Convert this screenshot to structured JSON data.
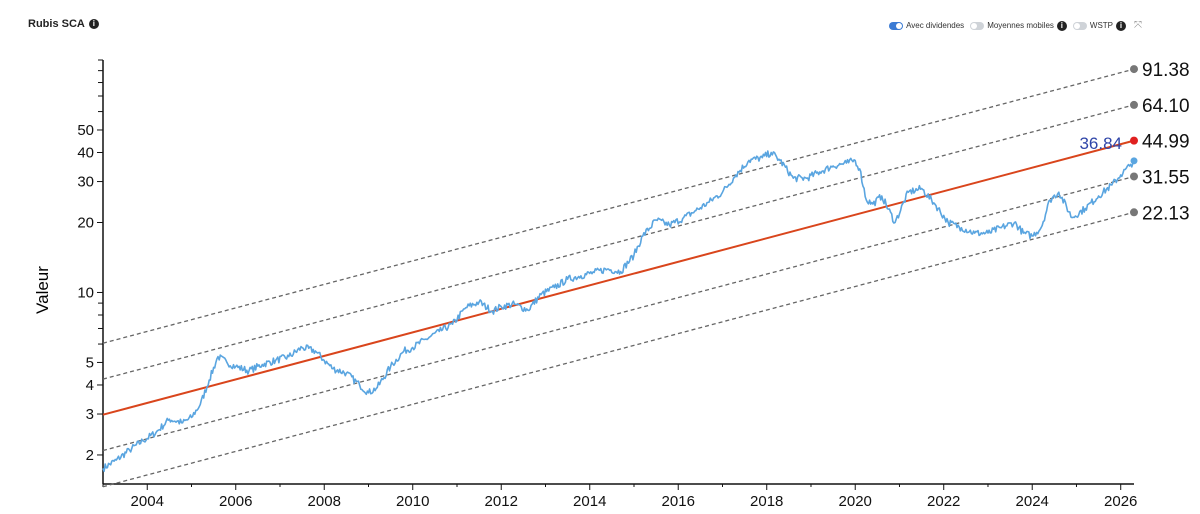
{
  "header": {
    "title": "Rubis SCA",
    "info_glyph": "i",
    "toggles": [
      {
        "label": "Avec dividendes",
        "on": true,
        "info": false
      },
      {
        "label": "Moyennes mobiles",
        "on": false,
        "info": true
      },
      {
        "label": "WSTP",
        "on": false,
        "info": true
      }
    ],
    "expand_glyph": "⤧"
  },
  "colors": {
    "price": "#5aa5e0",
    "trend": "#d9451c",
    "band": "#666666",
    "current_label": "#2f45a8",
    "trend_dot": "#e02020",
    "band_dot": "#777777"
  },
  "chart_data": {
    "type": "line",
    "title": "",
    "xlabel": "",
    "ylabel": "Valeur",
    "y_scale": "log",
    "ylim": [
      1.5,
      100
    ],
    "xlim": [
      2003.0,
      2026.3
    ],
    "x_ticks": [
      "2004",
      "2006",
      "2008",
      "2010",
      "2012",
      "2014",
      "2016",
      "2018",
      "2020",
      "2022",
      "2024",
      "2026"
    ],
    "y_ticks": [
      "2",
      "3",
      "4",
      "5",
      "10",
      "20",
      "30",
      "40",
      "50"
    ],
    "grid": false,
    "current_value": "36.84",
    "trend_lines": [
      {
        "role": "upper-2",
        "start": [
          2003.0,
          6.05
        ],
        "end": [
          2026.3,
          91.38
        ],
        "end_label": "91.38",
        "style": "dashed"
      },
      {
        "role": "upper-1",
        "start": [
          2003.0,
          4.24
        ],
        "end": [
          2026.3,
          64.1
        ],
        "end_label": "64.10",
        "style": "dashed"
      },
      {
        "role": "trend",
        "start": [
          2003.0,
          2.98
        ],
        "end": [
          2026.3,
          44.99
        ],
        "end_label": "44.99",
        "style": "solid"
      },
      {
        "role": "lower-1",
        "start": [
          2003.0,
          2.09
        ],
        "end": [
          2026.3,
          31.55
        ],
        "end_label": "31.55",
        "style": "dashed"
      },
      {
        "role": "lower-2",
        "start": [
          2003.0,
          1.46
        ],
        "end": [
          2026.3,
          22.13
        ],
        "end_label": "22.13",
        "style": "dashed"
      }
    ],
    "series": [
      {
        "x": [
          2003.0,
          2003.3,
          2003.6,
          2003.9,
          2004.2,
          2004.5,
          2004.8,
          2005.0,
          2005.2,
          2005.4,
          2005.6,
          2005.8,
          2006.0,
          2006.3,
          2006.6,
          2006.9,
          2007.2,
          2007.5,
          2007.8,
          2008.0,
          2008.2,
          2008.5,
          2008.8,
          2009.0,
          2009.2,
          2009.5,
          2009.8,
          2010.0,
          2010.3,
          2010.6,
          2010.9,
          2011.2,
          2011.5,
          2011.8,
          2012.0,
          2012.3,
          2012.6,
          2012.9,
          2013.2,
          2013.5,
          2013.8,
          2014.1,
          2014.4,
          2014.7,
          2015.0,
          2015.2,
          2015.5,
          2015.8,
          2016.1,
          2016.4,
          2016.7,
          2017.0,
          2017.3,
          2017.6,
          2017.9,
          2018.1,
          2018.3,
          2018.6,
          2018.9,
          2019.2,
          2019.5,
          2019.8,
          2020.0,
          2020.1,
          2020.25,
          2020.4,
          2020.6,
          2020.9,
          2021.2,
          2021.5,
          2021.8,
          2022.1,
          2022.4,
          2022.7,
          2023.0,
          2023.3,
          2023.6,
          2023.8,
          2024.0,
          2024.2,
          2024.4,
          2024.6,
          2024.9,
          2025.2,
          2025.5,
          2025.8,
          2026.0,
          2026.2,
          2026.3
        ],
        "y": [
          1.75,
          1.9,
          2.1,
          2.3,
          2.5,
          2.85,
          2.75,
          2.9,
          3.3,
          4.2,
          5.3,
          5.0,
          4.8,
          4.6,
          4.9,
          5.1,
          5.3,
          5.8,
          5.6,
          5.1,
          4.7,
          4.5,
          4.0,
          3.7,
          3.9,
          4.8,
          5.6,
          5.8,
          6.3,
          6.8,
          7.3,
          8.6,
          9.1,
          8.3,
          8.7,
          8.9,
          8.4,
          9.8,
          10.5,
          11.4,
          11.8,
          12.2,
          12.6,
          12.3,
          14.5,
          17.5,
          20.5,
          19.5,
          20.8,
          22.5,
          24.5,
          27,
          32,
          37,
          38,
          40,
          37,
          31,
          31,
          33,
          35,
          36,
          37,
          34,
          25,
          24,
          26,
          20,
          27,
          28,
          24,
          20,
          19,
          18,
          18,
          19,
          20,
          18,
          17.5,
          19,
          25,
          27,
          21,
          23,
          26,
          29,
          32,
          35,
          36.84
        ]
      }
    ]
  }
}
